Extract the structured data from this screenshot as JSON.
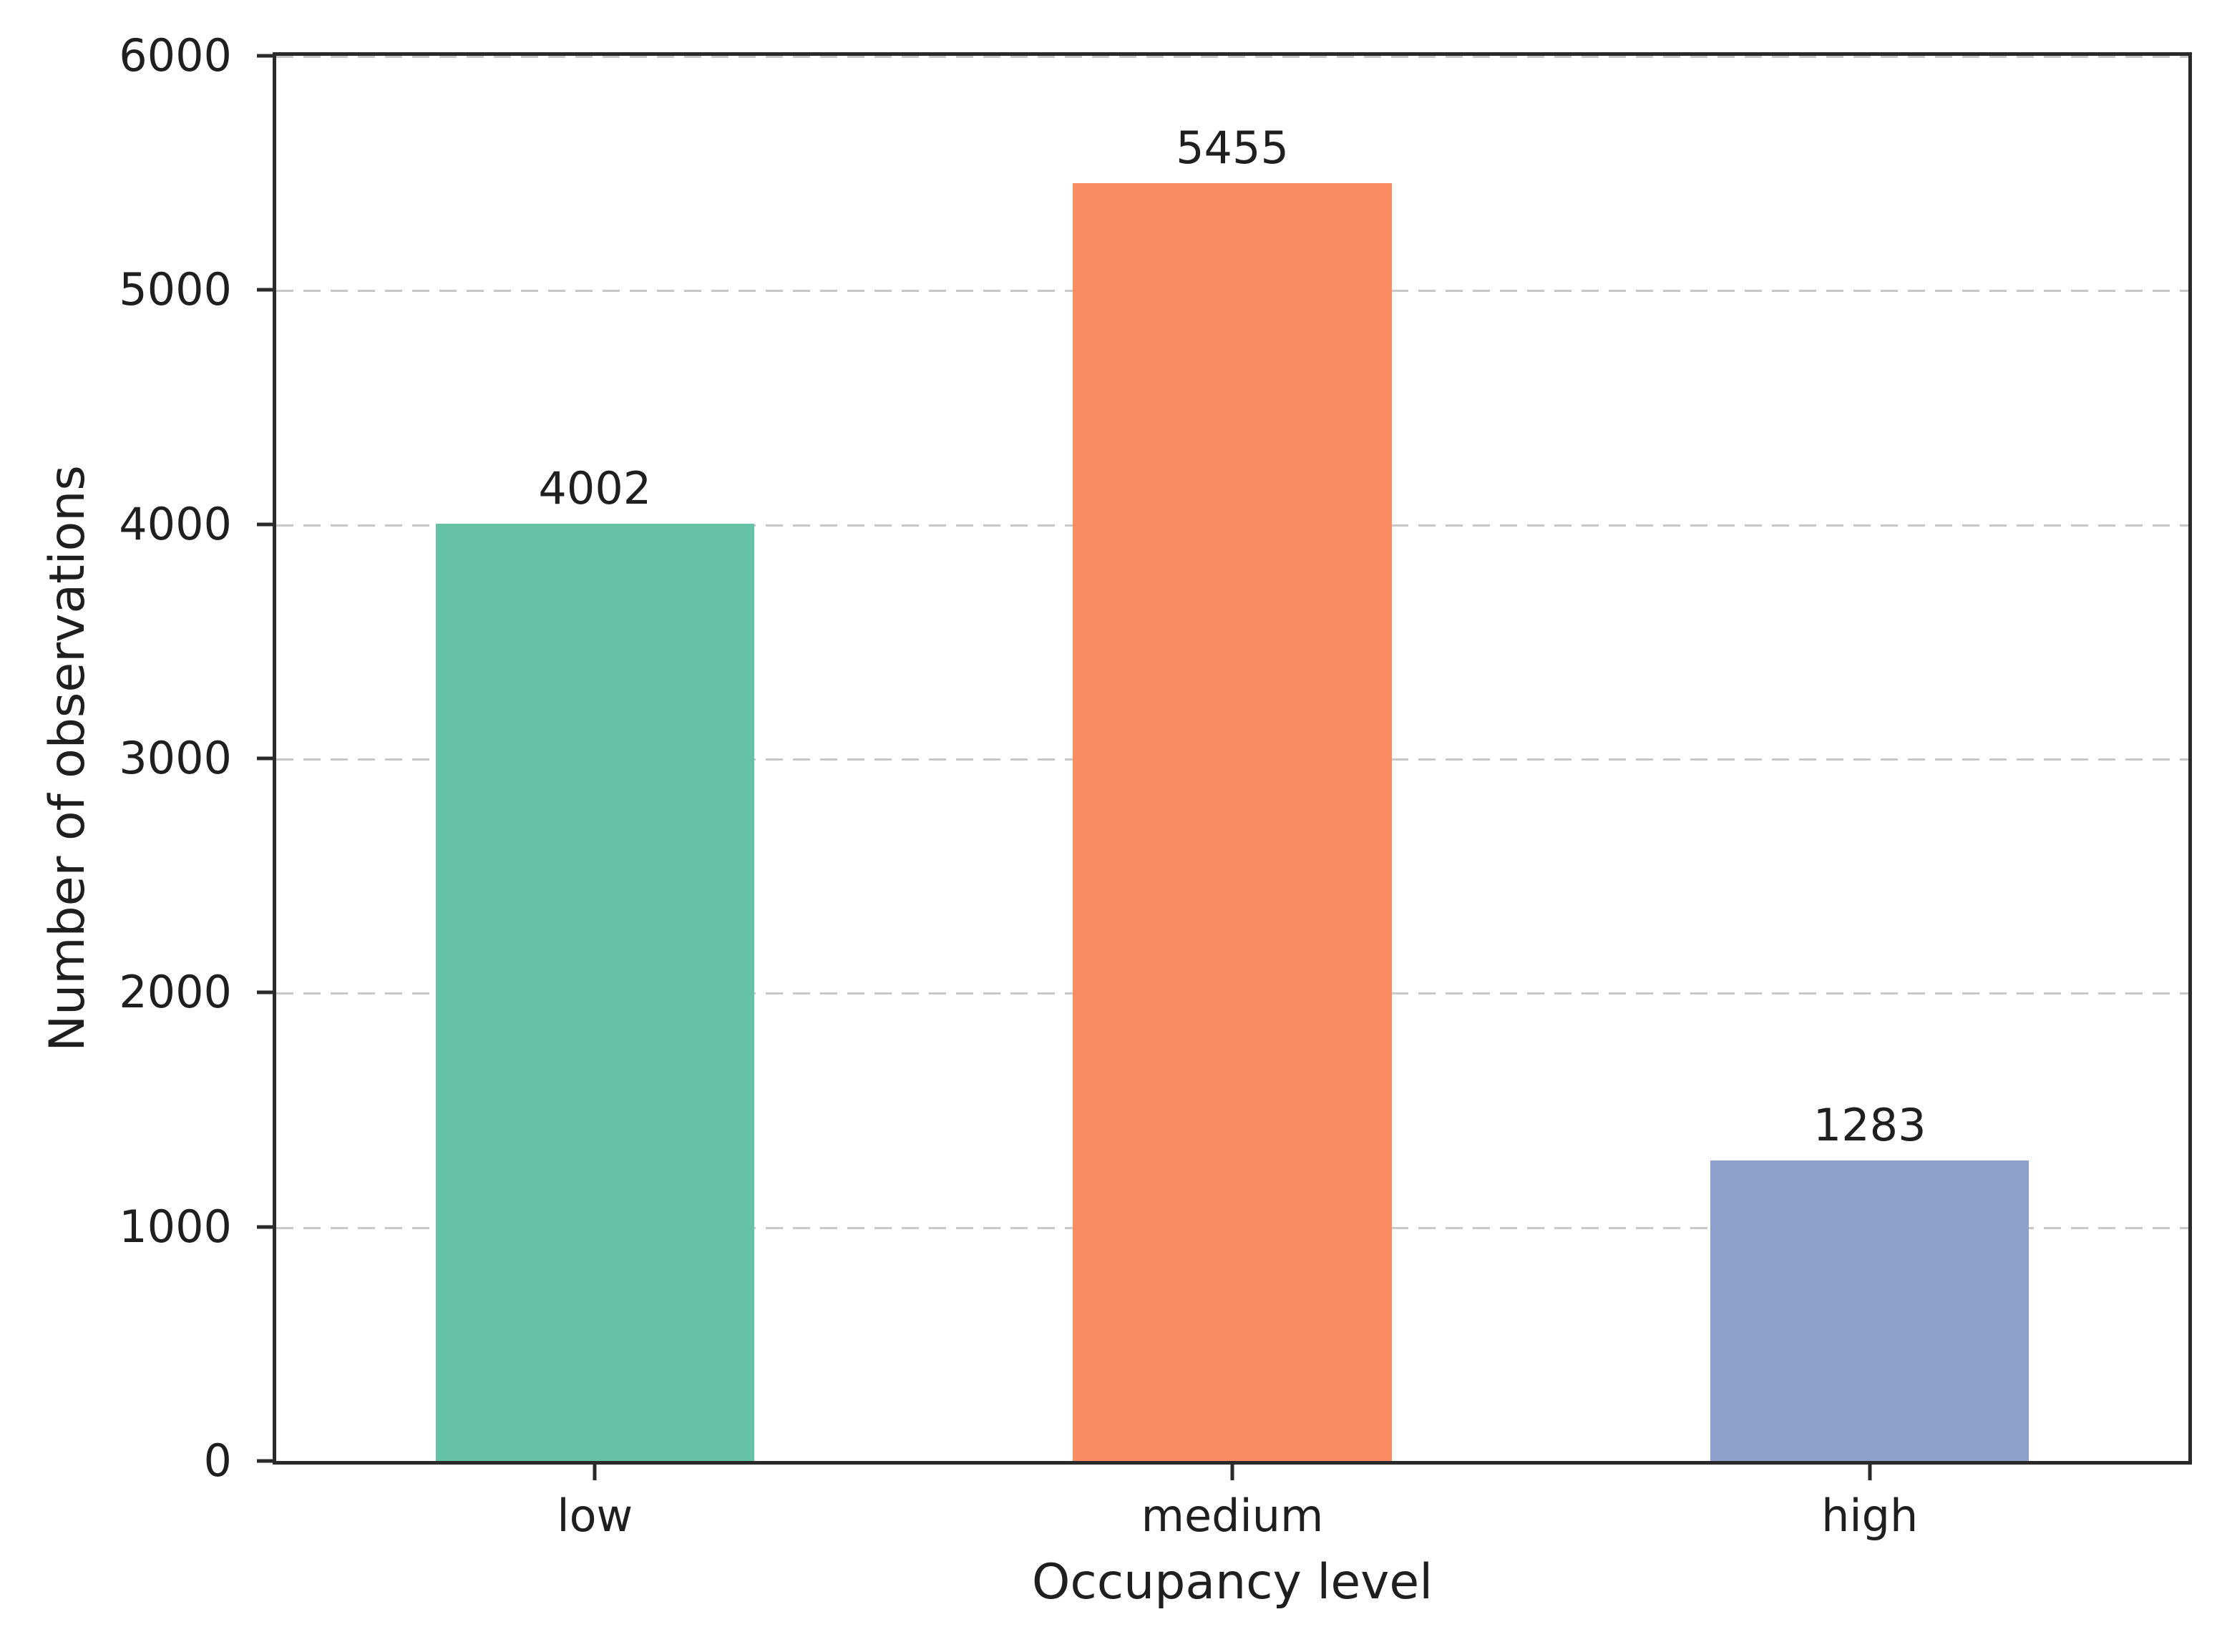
{
  "chart_data": {
    "type": "bar",
    "title": "",
    "xlabel": "Occupancy level",
    "ylabel": "Number of observations",
    "categories": [
      "low",
      "medium",
      "high"
    ],
    "values": [
      4002,
      5455,
      1283
    ],
    "bar_value_labels": [
      "4002",
      "5455",
      "1283"
    ],
    "bar_colors": [
      "#66c2a5",
      "#fc8d62",
      "#8da0cb"
    ],
    "ylim": [
      0,
      6000
    ],
    "yticks": [
      0,
      1000,
      2000,
      3000,
      4000,
      5000,
      6000
    ],
    "ytick_labels": [
      "0",
      "1000",
      "2000",
      "3000",
      "4000",
      "5000",
      "6000"
    ],
    "grid": "horizontal dashed",
    "legend_position": "none",
    "bar_width_fraction": 0.5
  },
  "style_colors": {
    "spine": "#2a2a2a",
    "grid": "#c8c8c8",
    "text": "#1f1f1f",
    "background": "#ffffff"
  }
}
